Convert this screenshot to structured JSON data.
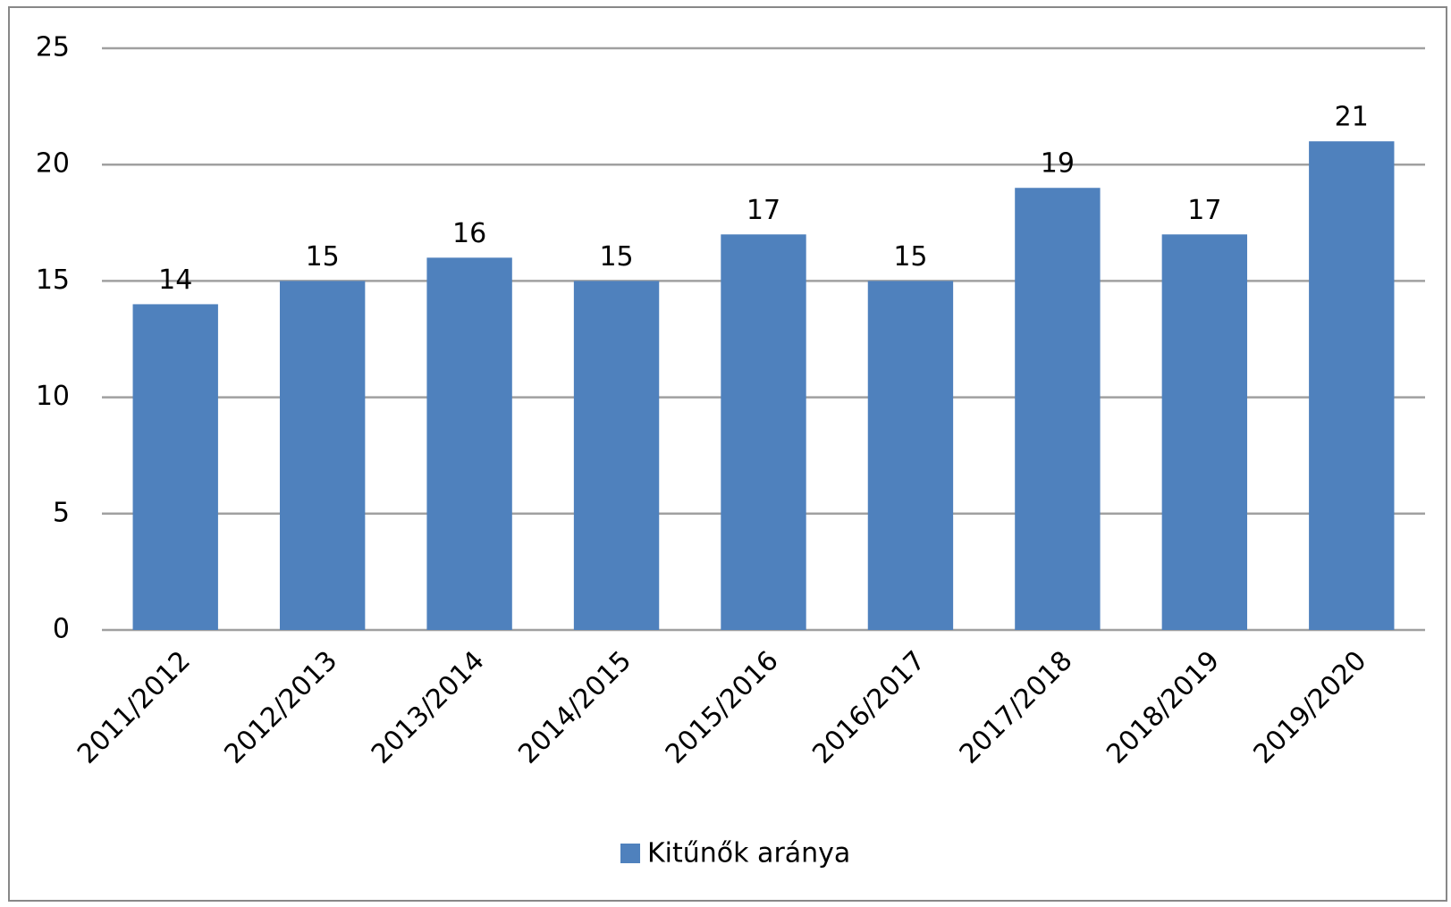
{
  "chart_data": {
    "type": "bar",
    "categories": [
      "2011/2012",
      "2012/2013",
      "2013/2014",
      "2014/2015",
      "2015/2016",
      "2016/2017",
      "2017/2018",
      "2018/2019",
      "2019/2020"
    ],
    "series": [
      {
        "name": "Kitűnők aránya",
        "color": "#4f81bd",
        "values": [
          14,
          15,
          16,
          15,
          17,
          15,
          19,
          17,
          21
        ]
      }
    ],
    "ylim": [
      0,
      25
    ],
    "yticks": [
      0,
      5,
      10,
      15,
      20,
      25
    ],
    "grid": true,
    "legend": "bottom",
    "data_labels": true
  }
}
